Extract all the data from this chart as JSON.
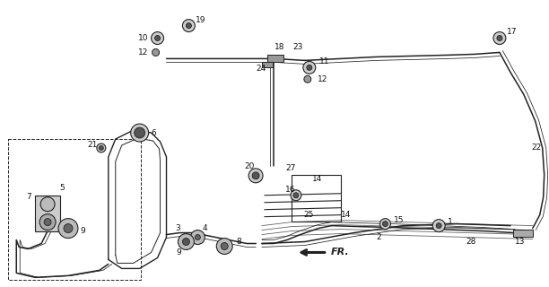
{
  "bg_color": "#ffffff",
  "line_color": "#222222",
  "text_color": "#111111",
  "fig_width": 6.12,
  "fig_height": 3.2,
  "dpi": 100,
  "lw_tube": 1.1,
  "lw_tube2": 0.55,
  "fs_label": 6.5
}
